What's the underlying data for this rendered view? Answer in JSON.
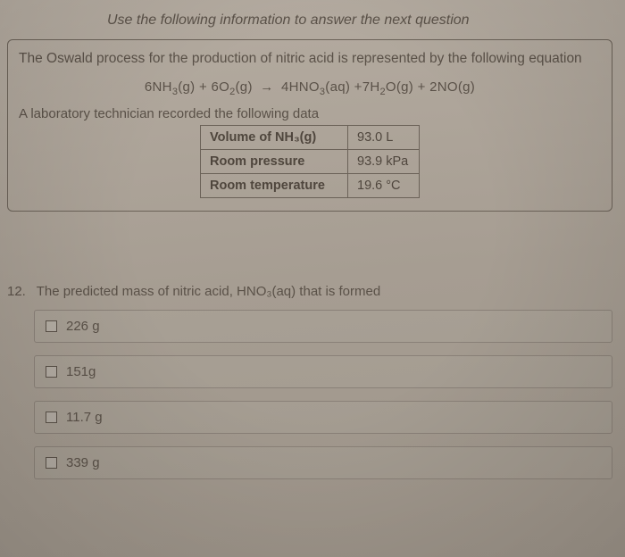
{
  "instruction": "Use the following information to answer the next question",
  "intro": "The Oswald process for the production of nitric acid is represented by the following equation",
  "equation_html": "6NH<sub class='sub'>3</sub>(g) + 6O<sub class='sub'>2</sub>(g) <span class='arrow'>→</span> 4HNO<sub class='sub'>3</sub>(aq) +7H<sub class='sub'>2</sub>O(g) + 2NO(g)",
  "tech_line": "A laboratory technician recorded the following data",
  "table": {
    "rows": [
      {
        "label": "Volume of NH₃(g)",
        "value": "93.0 L"
      },
      {
        "label": "Room pressure",
        "value": "93.9 kPa"
      },
      {
        "label": "Room temperature",
        "value": "19.6 °C"
      }
    ]
  },
  "question": {
    "number": "12.",
    "text": "The predicted mass of nitric acid, HNO₃(aq) that is formed",
    "options": [
      "226 g",
      "151g",
      "11.7 g",
      "339 g"
    ]
  },
  "colors": {
    "bg_top": "#b5aca1",
    "bg_bottom": "#9e958a",
    "border": "#6b6258",
    "text": "#5a5148"
  }
}
